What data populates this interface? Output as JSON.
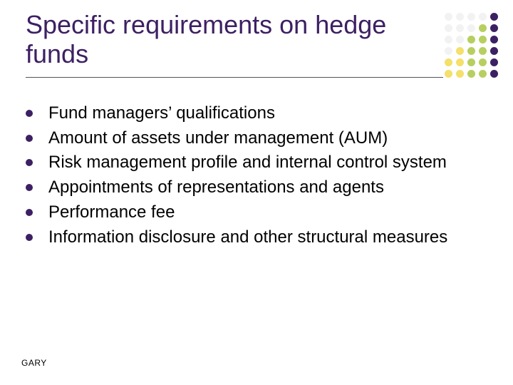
{
  "title_color": "#3d2063",
  "bullet_dot_color": "#3d2063",
  "text_color": "#000000",
  "title": "Specific requirements on hedge funds",
  "bullets": [
    "Fund managers’ qualifications",
    "Amount of assets under management (AUM)",
    "Risk management profile and internal control system",
    "Appointments of representations and agents",
    "Performance fee",
    "Information disclosure and other structural measures"
  ],
  "footer": "GARY",
  "decoration": {
    "rows": 6,
    "cols": 5,
    "dots": [
      [
        "#f2f2f2",
        "#f2f2f2",
        "#f2f2f2",
        "#f2f2f2",
        "#3d2063"
      ],
      [
        "#f2f2f2",
        "#f2f2f2",
        "#f2f2f2",
        "#b7cf60",
        "#3d2063"
      ],
      [
        "#f2f2f2",
        "#f2f2f2",
        "#b7cf60",
        "#b7cf60",
        "#3d2063"
      ],
      [
        "#f2f2f2",
        "#f4e06a",
        "#b7cf60",
        "#b7cf60",
        "#3d2063"
      ],
      [
        "#f4e06a",
        "#f4e06a",
        "#b7cf60",
        "#b7cf60",
        "#3d2063"
      ],
      [
        "#f4e06a",
        "#f4e06a",
        "#b7cf60",
        "#b7cf60",
        "#3d2063"
      ]
    ]
  }
}
